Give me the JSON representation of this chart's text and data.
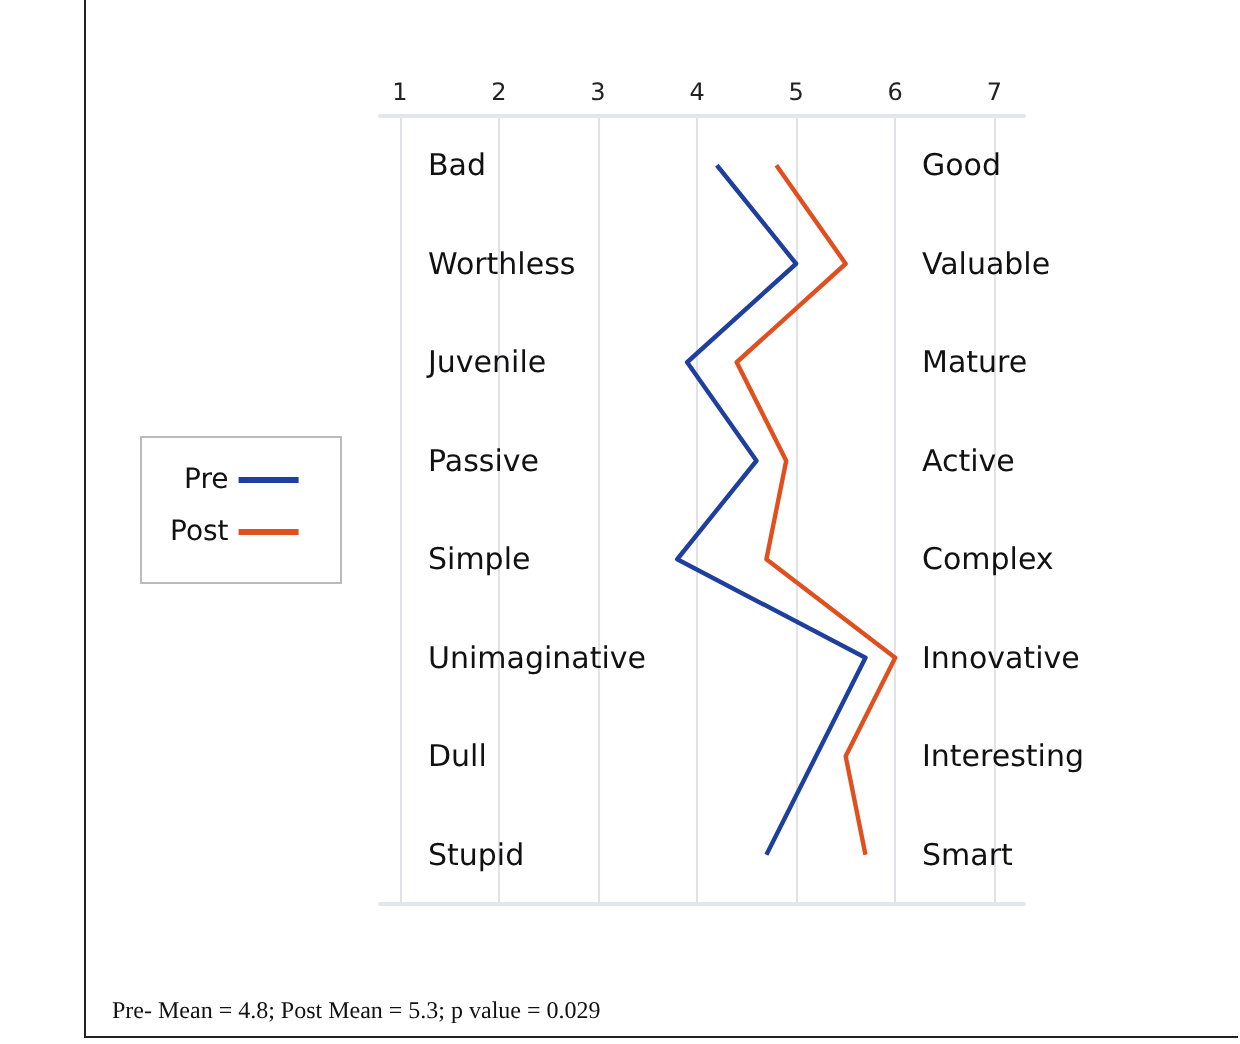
{
  "chart_data": {
    "type": "line",
    "orientation": "horizontal",
    "categories": [
      "Bad",
      "Worthless",
      "Juvenile",
      "Passive",
      "Simple",
      "Unimaginative",
      "Dull",
      "Stupid"
    ],
    "y2_categories": [
      "Good",
      "Valuable",
      "Mature",
      "Active",
      "Complex",
      "Innovative",
      "Interesting",
      "Smart"
    ],
    "series": [
      {
        "name": "Pre",
        "color": "#1f3f9f",
        "values": [
          4.2,
          5.0,
          3.9,
          4.6,
          3.8,
          5.7,
          5.2,
          4.7
        ]
      },
      {
        "name": "Post",
        "color": "#e0501e",
        "values": [
          4.8,
          5.5,
          4.4,
          4.9,
          4.7,
          6.0,
          5.5,
          5.7
        ]
      }
    ],
    "xlim": [
      0.8,
      7.3
    ],
    "xticks": [
      1,
      2,
      3,
      4,
      5,
      6,
      7
    ],
    "grid": "x",
    "legend": "left",
    "marker": "none",
    "line_style": "solid",
    "annotations": [
      "Pre- Mean = 4.8; Post Mean = 5.3; p value = 0.029"
    ]
  }
}
